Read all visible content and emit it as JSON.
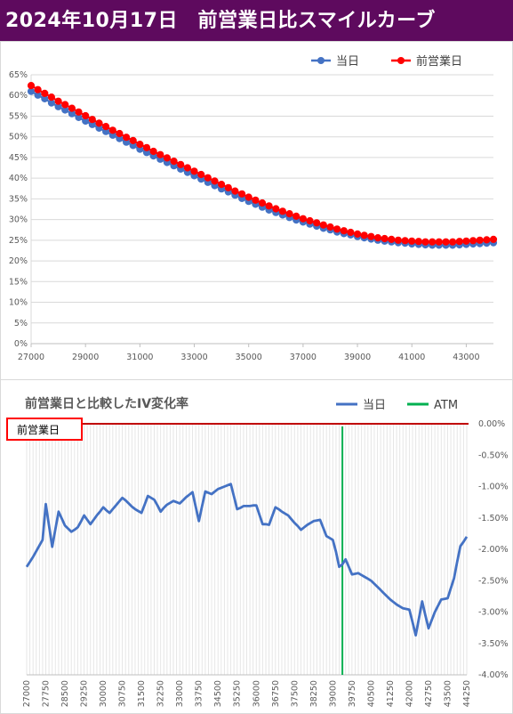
{
  "banner": {
    "title": "2024年10月17日　前営業日比スマイルカーブ",
    "bg_color": "#5e0a5e"
  },
  "chart_data": [
    {
      "type": "line",
      "title": "",
      "legend": {
        "position": "top-right",
        "entries": [
          "当日",
          "前営業日"
        ]
      },
      "xlim": [
        27000,
        44000
      ],
      "ylim": [
        0,
        65
      ],
      "y_tick_labels": [
        "0%",
        "5%",
        "10%",
        "15%",
        "20%",
        "25%",
        "30%",
        "35%",
        "40%",
        "45%",
        "50%",
        "55%",
        "60%",
        "65%"
      ],
      "x_tick_labels": [
        "27000",
        "29000",
        "31000",
        "33000",
        "35000",
        "37000",
        "39000",
        "41000",
        "43000"
      ],
      "x": [
        27000,
        27250,
        27500,
        27750,
        28000,
        28250,
        28500,
        28750,
        29000,
        29250,
        29500,
        29750,
        30000,
        30250,
        30500,
        30750,
        31000,
        31250,
        31500,
        31750,
        32000,
        32250,
        32500,
        32750,
        33000,
        33250,
        33500,
        33750,
        34000,
        34250,
        34500,
        34750,
        35000,
        35250,
        35500,
        35750,
        36000,
        36250,
        36500,
        36750,
        37000,
        37250,
        37500,
        37750,
        38000,
        38250,
        38500,
        38750,
        39000,
        39250,
        39500,
        39750,
        40000,
        40250,
        40500,
        40750,
        41000,
        41250,
        41500,
        41750,
        42000,
        42250,
        42500,
        42750,
        43000,
        43250,
        43500,
        43750,
        44000
      ],
      "series": [
        {
          "name": "当日",
          "color": "#4472c4",
          "values": [
            61.0,
            60.1,
            59.2,
            58.2,
            57.3,
            56.5,
            55.6,
            54.7,
            53.8,
            53.0,
            52.1,
            51.3,
            50.4,
            49.6,
            48.7,
            47.9,
            47.0,
            46.2,
            45.4,
            44.6,
            43.8,
            43.0,
            42.2,
            41.4,
            40.6,
            39.8,
            39.0,
            38.2,
            37.4,
            36.7,
            35.9,
            35.1,
            34.4,
            33.7,
            33.0,
            32.3,
            31.7,
            31.1,
            30.5,
            29.9,
            29.4,
            28.9,
            28.4,
            27.9,
            27.5,
            27.0,
            26.6,
            26.3,
            25.9,
            25.6,
            25.3,
            25.0,
            24.8,
            24.6,
            24.4,
            24.3,
            24.1,
            24.0,
            23.9,
            23.8,
            23.8,
            23.8,
            23.8,
            23.9,
            24.0,
            24.1,
            24.2,
            24.3,
            24.4
          ]
        },
        {
          "name": "前営業日",
          "color": "#ff0000",
          "values": [
            62.4,
            61.4,
            60.5,
            59.6,
            58.6,
            57.8,
            56.9,
            56.0,
            55.1,
            54.2,
            53.3,
            52.5,
            51.6,
            50.8,
            49.9,
            49.1,
            48.2,
            47.4,
            46.5,
            45.7,
            44.9,
            44.1,
            43.3,
            42.5,
            41.7,
            40.9,
            40.1,
            39.3,
            38.5,
            37.7,
            36.9,
            36.2,
            35.4,
            34.7,
            34.0,
            33.3,
            32.6,
            32.0,
            31.4,
            30.8,
            30.2,
            29.7,
            29.2,
            28.7,
            28.2,
            27.7,
            27.3,
            26.9,
            26.5,
            26.2,
            25.9,
            25.6,
            25.4,
            25.2,
            25.0,
            24.9,
            24.8,
            24.7,
            24.6,
            24.6,
            24.6,
            24.6,
            24.6,
            24.7,
            24.8,
            24.9,
            25.0,
            25.1,
            25.2
          ]
        }
      ]
    },
    {
      "type": "line",
      "title": "前営業日と比較したIV変化率",
      "legend": {
        "position": "top-right",
        "entries": [
          "当日",
          "ATM"
        ]
      },
      "baseline_label": "前営業日",
      "atm_x": 39375,
      "ylim": [
        -4.0,
        0.0
      ],
      "y_tick_labels": [
        "0.00%",
        "-0.50%",
        "-1.00%",
        "-1.50%",
        "-2.00%",
        "-2.50%",
        "-3.00%",
        "-3.50%",
        "-4.00%"
      ],
      "x_tick_labels": [
        "27000",
        "27750",
        "28500",
        "29250",
        "30000",
        "30750",
        "31500",
        "32250",
        "33000",
        "33750",
        "34500",
        "35250",
        "36000",
        "36750",
        "37500",
        "38250",
        "39000",
        "39750",
        "40500",
        "41250",
        "42000",
        "42750",
        "43500",
        "44250"
      ],
      "x": [
        27000,
        27125,
        27250,
        27375,
        27500,
        27625,
        27750,
        27875,
        28000,
        28125,
        28250,
        28375,
        28500,
        28625,
        28750,
        28875,
        29000,
        29125,
        29250,
        29375,
        29500,
        29625,
        29750,
        29875,
        30000,
        30125,
        30250,
        30375,
        30500,
        30625,
        30750,
        30875,
        31000,
        31125,
        31250,
        31375,
        31500,
        31625,
        31750,
        31875,
        32000,
        32125,
        32250,
        32375,
        32500,
        32625,
        32750,
        32875,
        33000,
        33125,
        33250,
        33375,
        33500,
        33625,
        33750,
        33875,
        34000,
        34125,
        34250,
        34375,
        34500,
        34625,
        34750,
        34875,
        35000,
        35125,
        35250,
        35375,
        35500,
        35625,
        35750,
        35875,
        36000,
        36125,
        36250,
        36375,
        36500,
        36625,
        36750,
        36875,
        37000,
        37125,
        37250,
        37375,
        37500,
        37625,
        37750,
        37875,
        38000,
        38125,
        38250,
        38375,
        38500,
        38625,
        38750,
        38875,
        39000,
        39125,
        39250,
        39375,
        39500,
        39625,
        39750,
        39875,
        40000,
        40125,
        40250,
        40375,
        40500,
        40625,
        40750,
        40875,
        41000,
        41125,
        41250,
        41375,
        41500,
        41625,
        41750,
        41875,
        42000,
        42125,
        42250,
        42375,
        42500,
        42625,
        42750,
        42875,
        43000,
        43125,
        43250,
        43375,
        43500,
        43625,
        43750,
        43875,
        44000,
        44125,
        44250
      ],
      "series": [
        {
          "name": "当日",
          "color": "#4472c4",
          "values": [
            -2.28,
            -2.2,
            -2.12,
            -2.03,
            -1.94,
            -1.85,
            -1.28,
            -1.62,
            -1.96,
            -1.68,
            -1.4,
            -1.51,
            -1.62,
            -1.67,
            -1.72,
            -1.69,
            -1.65,
            -1.56,
            -1.46,
            -1.53,
            -1.6,
            -1.53,
            -1.46,
            -1.4,
            -1.33,
            -1.38,
            -1.42,
            -1.36,
            -1.3,
            -1.24,
            -1.18,
            -1.22,
            -1.27,
            -1.32,
            -1.36,
            -1.39,
            -1.42,
            -1.29,
            -1.15,
            -1.18,
            -1.21,
            -1.3,
            -1.4,
            -1.34,
            -1.29,
            -1.26,
            -1.23,
            -1.25,
            -1.27,
            -1.22,
            -1.17,
            -1.13,
            -1.09,
            -1.32,
            -1.55,
            -1.31,
            -1.08,
            -1.1,
            -1.12,
            -1.08,
            -1.04,
            -1.02,
            -1.0,
            -0.98,
            -0.96,
            -1.16,
            -1.36,
            -1.34,
            -1.31,
            -1.31,
            -1.31,
            -1.3,
            -1.3,
            -1.45,
            -1.6,
            -1.6,
            -1.61,
            -1.47,
            -1.33,
            -1.36,
            -1.4,
            -1.43,
            -1.46,
            -1.52,
            -1.58,
            -1.63,
            -1.69,
            -1.65,
            -1.61,
            -1.58,
            -1.55,
            -1.54,
            -1.53,
            -1.66,
            -1.79,
            -1.82,
            -1.85,
            -2.04,
            -2.28,
            -2.24,
            -2.16,
            -2.28,
            -2.4,
            -2.39,
            -2.38,
            -2.41,
            -2.44,
            -2.47,
            -2.5,
            -2.55,
            -2.6,
            -2.65,
            -2.7,
            -2.75,
            -2.8,
            -2.84,
            -2.88,
            -2.91,
            -2.94,
            -2.95,
            -2.96,
            -3.16,
            -3.37,
            -3.1,
            -2.83,
            -3.05,
            -3.26,
            -3.13,
            -3.0,
            -2.9,
            -2.8,
            -2.79,
            -2.78,
            -2.62,
            -2.46,
            -2.2,
            -1.95,
            -1.88,
            -1.8
          ]
        }
      ]
    }
  ]
}
